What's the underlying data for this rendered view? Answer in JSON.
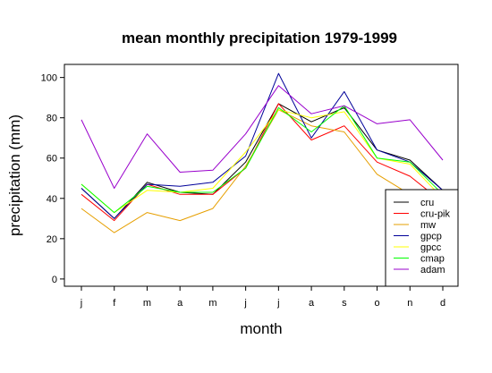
{
  "chart_data": {
    "type": "line",
    "title": "mean monthly precipitation 1979-1999",
    "xlabel": "month",
    "ylabel": "precipitation (mm)",
    "categories": [
      "j",
      "f",
      "m",
      "a",
      "m",
      "j",
      "j",
      "a",
      "s",
      "o",
      "n",
      "d"
    ],
    "yticks": [
      0,
      20,
      40,
      60,
      80,
      100
    ],
    "ylim": [
      -3.6,
      106.5
    ],
    "grid": false,
    "legend_position": "bottom-right",
    "series": [
      {
        "name": "cru",
        "color": "#000000",
        "values": [
          45,
          30,
          48,
          43,
          42,
          58,
          87,
          78,
          85,
          64,
          59,
          44
        ]
      },
      {
        "name": "cru-pik",
        "color": "#ff0000",
        "values": [
          42,
          29,
          47,
          42,
          42,
          55,
          87,
          69,
          76,
          58,
          51,
          38
        ]
      },
      {
        "name": "mw",
        "color": "#e69f00",
        "values": [
          35,
          23,
          33,
          29,
          35,
          56,
          84,
          76,
          73,
          52,
          42,
          37
        ]
      },
      {
        "name": "gpcp",
        "color": "#000099",
        "values": [
          45,
          30,
          47,
          46,
          48,
          61,
          102,
          70,
          93,
          64,
          58,
          44
        ]
      },
      {
        "name": "gpcc",
        "color": "#ffff00",
        "values": [
          47,
          33,
          44,
          43,
          45,
          63,
          84,
          80,
          83,
          60,
          57,
          40
        ]
      },
      {
        "name": "cmap",
        "color": "#00ff00",
        "values": [
          47,
          33,
          46,
          43,
          43,
          55,
          85,
          73,
          86,
          60,
          58,
          42
        ]
      },
      {
        "name": "adam",
        "color": "#9900cc",
        "values": [
          79,
          45,
          72,
          53,
          54,
          72,
          96,
          82,
          86,
          77,
          79,
          59
        ]
      }
    ]
  }
}
